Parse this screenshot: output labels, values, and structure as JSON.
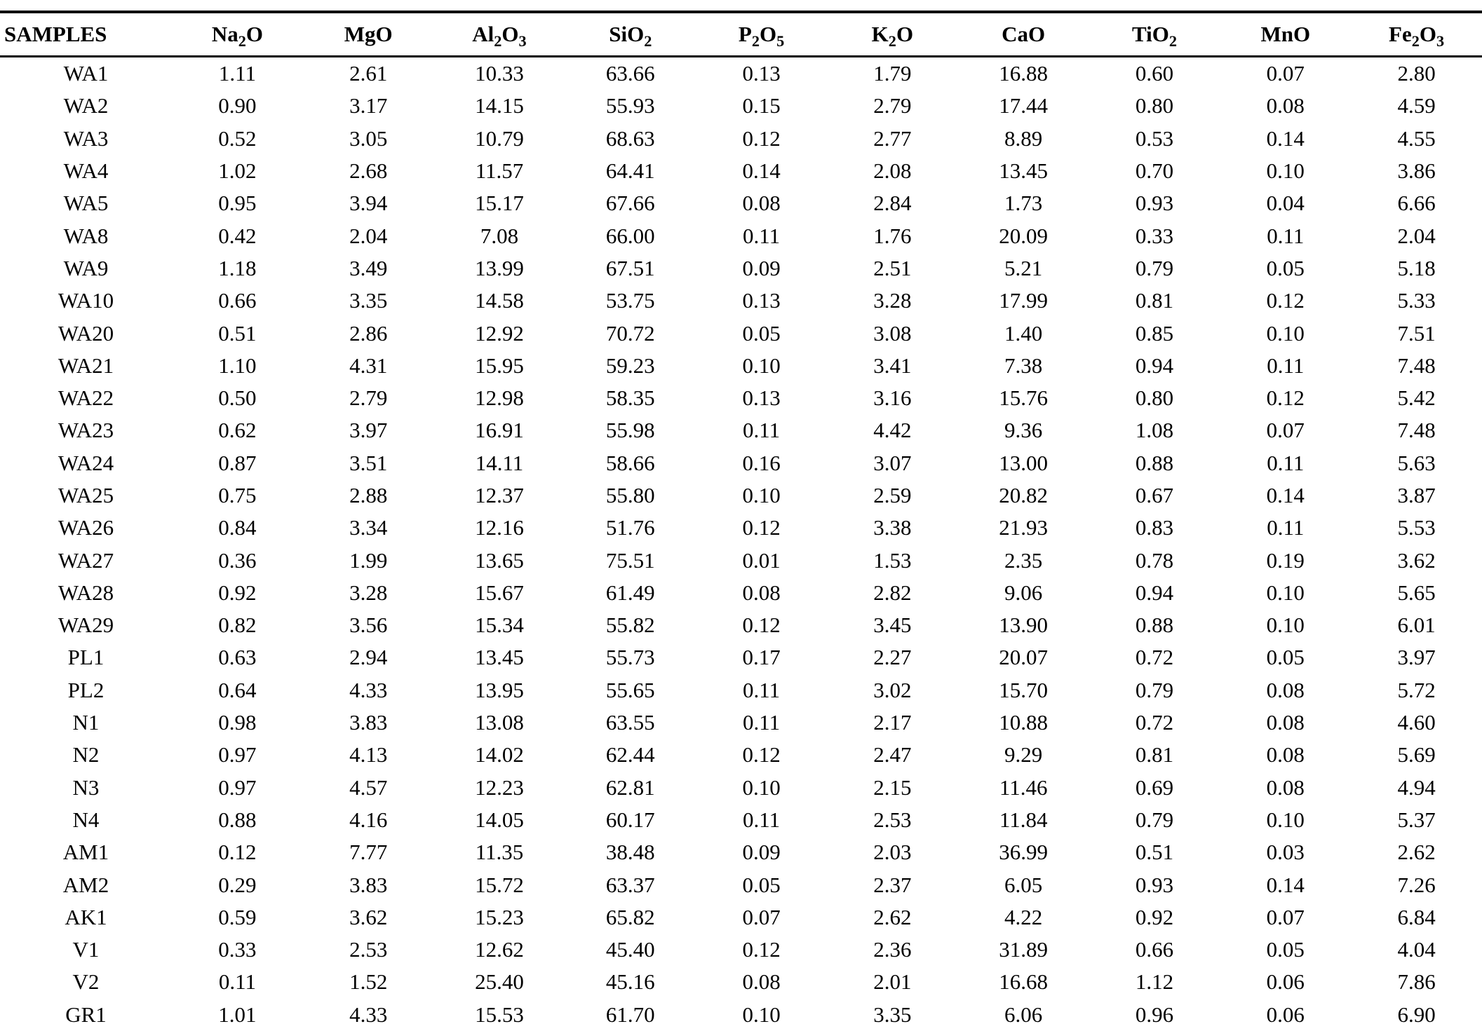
{
  "colors": {
    "background": "#ffffff",
    "text": "#000000",
    "rule": "#000000"
  },
  "table": {
    "columns": [
      "SAMPLES",
      "Na2O",
      "MgO",
      "Al2O3",
      "SiO2",
      "P2O5",
      "K2O",
      "CaO",
      "TiO2",
      "MnO",
      "Fe2O3"
    ],
    "rows": [
      {
        "sample": "WA1",
        "values": [
          "1.11",
          "2.61",
          "10.33",
          "63.66",
          "0.13",
          "1.79",
          "16.88",
          "0.60",
          "0.07",
          "2.80"
        ]
      },
      {
        "sample": "WA2",
        "values": [
          "0.90",
          "3.17",
          "14.15",
          "55.93",
          "0.15",
          "2.79",
          "17.44",
          "0.80",
          "0.08",
          "4.59"
        ]
      },
      {
        "sample": "WA3",
        "values": [
          "0.52",
          "3.05",
          "10.79",
          "68.63",
          "0.12",
          "2.77",
          "8.89",
          "0.53",
          "0.14",
          "4.55"
        ]
      },
      {
        "sample": "WA4",
        "values": [
          "1.02",
          "2.68",
          "11.57",
          "64.41",
          "0.14",
          "2.08",
          "13.45",
          "0.70",
          "0.10",
          "3.86"
        ]
      },
      {
        "sample": "WA5",
        "values": [
          "0.95",
          "3.94",
          "15.17",
          "67.66",
          "0.08",
          "2.84",
          "1.73",
          "0.93",
          "0.04",
          "6.66"
        ]
      },
      {
        "sample": "WA8",
        "values": [
          "0.42",
          "2.04",
          "7.08",
          "66.00",
          "0.11",
          "1.76",
          "20.09",
          "0.33",
          "0.11",
          "2.04"
        ]
      },
      {
        "sample": "WA9",
        "values": [
          "1.18",
          "3.49",
          "13.99",
          "67.51",
          "0.09",
          "2.51",
          "5.21",
          "0.79",
          "0.05",
          "5.18"
        ]
      },
      {
        "sample": "WA10",
        "values": [
          "0.66",
          "3.35",
          "14.58",
          "53.75",
          "0.13",
          "3.28",
          "17.99",
          "0.81",
          "0.12",
          "5.33"
        ]
      },
      {
        "sample": "WA20",
        "values": [
          "0.51",
          "2.86",
          "12.92",
          "70.72",
          "0.05",
          "3.08",
          "1.40",
          "0.85",
          "0.10",
          "7.51"
        ]
      },
      {
        "sample": "WA21",
        "values": [
          "1.10",
          "4.31",
          "15.95",
          "59.23",
          "0.10",
          "3.41",
          "7.38",
          "0.94",
          "0.11",
          "7.48"
        ]
      },
      {
        "sample": "WA22",
        "values": [
          "0.50",
          "2.79",
          "12.98",
          "58.35",
          "0.13",
          "3.16",
          "15.76",
          "0.80",
          "0.12",
          "5.42"
        ]
      },
      {
        "sample": "WA23",
        "values": [
          "0.62",
          "3.97",
          "16.91",
          "55.98",
          "0.11",
          "4.42",
          "9.36",
          "1.08",
          "0.07",
          "7.48"
        ]
      },
      {
        "sample": "WA24",
        "values": [
          "0.87",
          "3.51",
          "14.11",
          "58.66",
          "0.16",
          "3.07",
          "13.00",
          "0.88",
          "0.11",
          "5.63"
        ]
      },
      {
        "sample": "WA25",
        "values": [
          "0.75",
          "2.88",
          "12.37",
          "55.80",
          "0.10",
          "2.59",
          "20.82",
          "0.67",
          "0.14",
          "3.87"
        ]
      },
      {
        "sample": "WA26",
        "values": [
          "0.84",
          "3.34",
          "12.16",
          "51.76",
          "0.12",
          "3.38",
          "21.93",
          "0.83",
          "0.11",
          "5.53"
        ]
      },
      {
        "sample": "WA27",
        "values": [
          "0.36",
          "1.99",
          "13.65",
          "75.51",
          "0.01",
          "1.53",
          "2.35",
          "0.78",
          "0.19",
          "3.62"
        ]
      },
      {
        "sample": "WA28",
        "values": [
          "0.92",
          "3.28",
          "15.67",
          "61.49",
          "0.08",
          "2.82",
          "9.06",
          "0.94",
          "0.10",
          "5.65"
        ]
      },
      {
        "sample": "WA29",
        "values": [
          "0.82",
          "3.56",
          "15.34",
          "55.82",
          "0.12",
          "3.45",
          "13.90",
          "0.88",
          "0.10",
          "6.01"
        ]
      },
      {
        "sample": "PL1",
        "values": [
          "0.63",
          "2.94",
          "13.45",
          "55.73",
          "0.17",
          "2.27",
          "20.07",
          "0.72",
          "0.05",
          "3.97"
        ]
      },
      {
        "sample": "PL2",
        "values": [
          "0.64",
          "4.33",
          "13.95",
          "55.65",
          "0.11",
          "3.02",
          "15.70",
          "0.79",
          "0.08",
          "5.72"
        ]
      },
      {
        "sample": "N1",
        "values": [
          "0.98",
          "3.83",
          "13.08",
          "63.55",
          "0.11",
          "2.17",
          "10.88",
          "0.72",
          "0.08",
          "4.60"
        ]
      },
      {
        "sample": "N2",
        "values": [
          "0.97",
          "4.13",
          "14.02",
          "62.44",
          "0.12",
          "2.47",
          "9.29",
          "0.81",
          "0.08",
          "5.69"
        ]
      },
      {
        "sample": "N3",
        "values": [
          "0.97",
          "4.57",
          "12.23",
          "62.81",
          "0.10",
          "2.15",
          "11.46",
          "0.69",
          "0.08",
          "4.94"
        ]
      },
      {
        "sample": "N4",
        "values": [
          "0.88",
          "4.16",
          "14.05",
          "60.17",
          "0.11",
          "2.53",
          "11.84",
          "0.79",
          "0.10",
          "5.37"
        ]
      },
      {
        "sample": "AM1",
        "values": [
          "0.12",
          "7.77",
          "11.35",
          "38.48",
          "0.09",
          "2.03",
          "36.99",
          "0.51",
          "0.03",
          "2.62"
        ]
      },
      {
        "sample": "AM2",
        "values": [
          "0.29",
          "3.83",
          "15.72",
          "63.37",
          "0.05",
          "2.37",
          "6.05",
          "0.93",
          "0.14",
          "7.26"
        ]
      },
      {
        "sample": "AK1",
        "values": [
          "0.59",
          "3.62",
          "15.23",
          "65.82",
          "0.07",
          "2.62",
          "4.22",
          "0.92",
          "0.07",
          "6.84"
        ]
      },
      {
        "sample": "V1",
        "values": [
          "0.33",
          "2.53",
          "12.62",
          "45.40",
          "0.12",
          "2.36",
          "31.89",
          "0.66",
          "0.05",
          "4.04"
        ]
      },
      {
        "sample": "V2",
        "values": [
          "0.11",
          "1.52",
          "25.40",
          "45.16",
          "0.08",
          "2.01",
          "16.68",
          "1.12",
          "0.06",
          "7.86"
        ]
      },
      {
        "sample": "GR1",
        "values": [
          "1.01",
          "4.33",
          "15.53",
          "61.70",
          "0.10",
          "3.35",
          "6.06",
          "0.96",
          "0.06",
          "6.90"
        ]
      }
    ]
  }
}
